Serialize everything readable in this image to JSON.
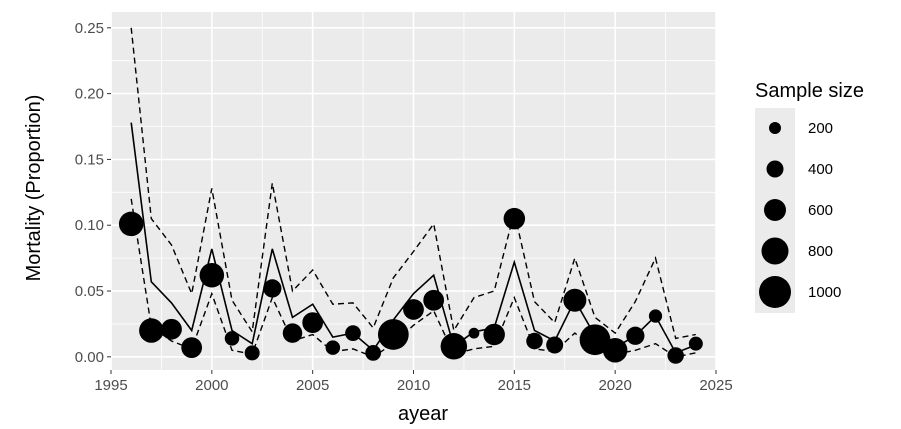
{
  "chart_data": {
    "type": "line",
    "xlabel": "ayear",
    "ylabel": "Mortality (Proportion)",
    "xlim": [
      1995,
      2025
    ],
    "ylim": [
      -0.01,
      0.262
    ],
    "x_ticks": [
      "1995",
      "2000",
      "2005",
      "2010",
      "2015",
      "2020",
      "2025"
    ],
    "x_tick_values": [
      1995,
      2000,
      2005,
      2010,
      2015,
      2020,
      2025
    ],
    "y_ticks": [
      "0.00",
      "0.05",
      "0.10",
      "0.15",
      "0.20",
      "0.25"
    ],
    "y_tick_values": [
      0.0,
      0.05,
      0.1,
      0.15,
      0.2,
      0.25
    ],
    "grid": true,
    "background": "#ebebeb",
    "legend_position": "right",
    "legend": {
      "title": "Sample size",
      "entries": [
        {
          "label": "200",
          "value": 200
        },
        {
          "label": "400",
          "value": 400
        },
        {
          "label": "600",
          "value": 600
        },
        {
          "label": "800",
          "value": 800
        },
        {
          "label": "1000",
          "value": 1000
        }
      ]
    },
    "series": [
      {
        "type": "line",
        "style": "solid",
        "x": [
          1996,
          1997,
          1998,
          1999,
          2000,
          2001,
          2002,
          2003,
          2004,
          2005,
          2006,
          2007,
          2008,
          2009,
          2010,
          2011,
          2012,
          2013,
          2014,
          2015,
          2016,
          2017,
          2018,
          2019,
          2020,
          2021,
          2022,
          2023,
          2024
        ],
        "values": [
          0.178,
          0.057,
          0.041,
          0.02,
          0.082,
          0.02,
          0.01,
          0.082,
          0.03,
          0.04,
          0.015,
          0.018,
          0.005,
          0.028,
          0.048,
          0.062,
          0.008,
          0.019,
          0.022,
          0.072,
          0.02,
          0.012,
          0.043,
          0.016,
          0.007,
          0.016,
          0.031,
          0.003,
          0.009
        ]
      },
      {
        "type": "line",
        "style": "dashed",
        "x": [
          1996,
          1997,
          1998,
          1999,
          2000,
          2001,
          2002,
          2003,
          2004,
          2005,
          2006,
          2007,
          2008,
          2009,
          2010,
          2011,
          2012,
          2013,
          2014,
          2015,
          2016,
          2017,
          2018,
          2019,
          2020,
          2021,
          2022,
          2023,
          2024
        ],
        "values": [
          0.25,
          0.105,
          0.085,
          0.048,
          0.128,
          0.043,
          0.019,
          0.132,
          0.05,
          0.066,
          0.04,
          0.041,
          0.022,
          0.06,
          0.08,
          0.101,
          0.02,
          0.045,
          0.05,
          0.11,
          0.042,
          0.026,
          0.075,
          0.03,
          0.018,
          0.042,
          0.075,
          0.014,
          0.017
        ]
      },
      {
        "type": "line",
        "style": "dashed",
        "x": [
          1996,
          1997,
          1998,
          1999,
          2000,
          2001,
          2002,
          2003,
          2004,
          2005,
          2006,
          2007,
          2008,
          2009,
          2010,
          2011,
          2012,
          2013,
          2014,
          2015,
          2016,
          2017,
          2018,
          2019,
          2020,
          2021,
          2022,
          2023,
          2024
        ],
        "values": [
          0.12,
          0.023,
          0.012,
          0.006,
          0.048,
          0.005,
          0.002,
          0.045,
          0.012,
          0.017,
          0.004,
          0.006,
          0.0,
          0.01,
          0.024,
          0.035,
          0.002,
          0.006,
          0.008,
          0.045,
          0.006,
          0.004,
          0.018,
          0.006,
          0.002,
          0.005,
          0.01,
          0.0,
          0.003
        ]
      },
      {
        "type": "scatter",
        "x": [
          1996,
          1997,
          1998,
          1999,
          2000,
          2001,
          2002,
          2003,
          2004,
          2005,
          2006,
          2007,
          2008,
          2009,
          2010,
          2011,
          2012,
          2013,
          2014,
          2015,
          2016,
          2017,
          2018,
          2019,
          2020,
          2021,
          2022,
          2023,
          2024
        ],
        "values": [
          0.101,
          0.02,
          0.021,
          0.007,
          0.062,
          0.014,
          0.003,
          0.052,
          0.018,
          0.026,
          0.007,
          0.018,
          0.003,
          0.017,
          0.036,
          0.043,
          0.008,
          0.018,
          0.017,
          0.105,
          0.012,
          0.009,
          0.043,
          0.013,
          0.005,
          0.016,
          0.031,
          0.001,
          0.01
        ],
        "sizes": [
          700,
          700,
          550,
          550,
          700,
          300,
          320,
          450,
          500,
          550,
          300,
          350,
          350,
          950,
          550,
          550,
          780,
          150,
          580,
          580,
          380,
          400,
          640,
          950,
          700,
          450,
          250,
          380,
          280
        ]
      }
    ]
  }
}
